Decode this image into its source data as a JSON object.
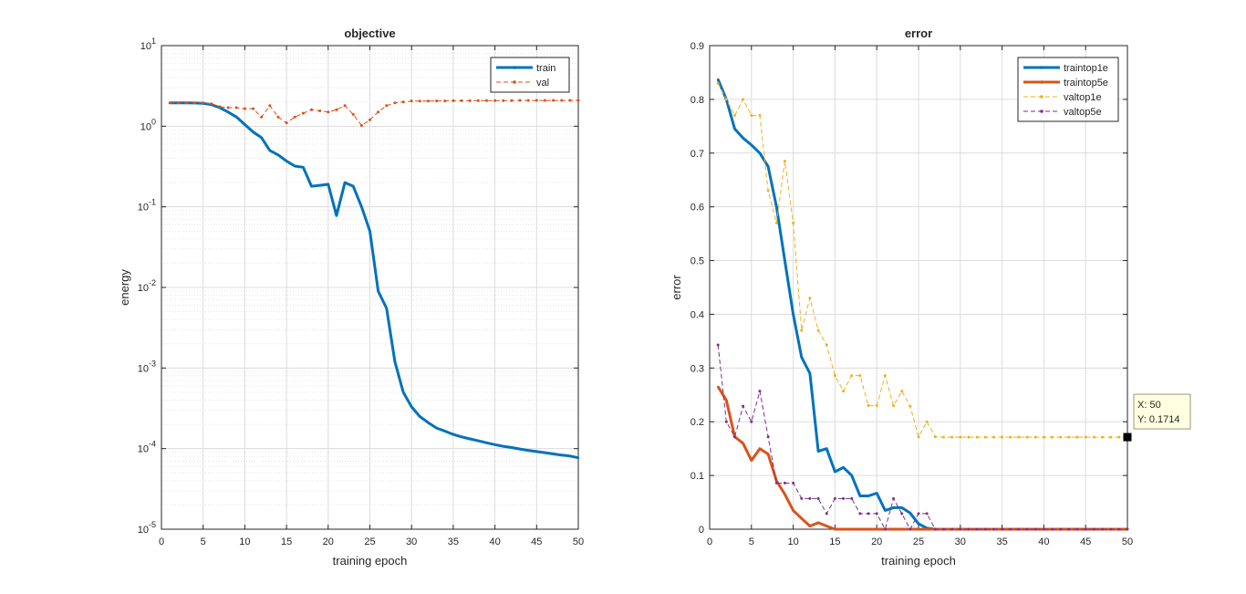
{
  "chart_data": [
    {
      "type": "line",
      "title": "objective",
      "xlabel": "training epoch",
      "ylabel": "energy",
      "xlim": [
        0,
        50
      ],
      "ylim": [
        1e-05,
        10
      ],
      "yscale": "log",
      "grid": true,
      "minor_grid": true,
      "legend_position": "top-right",
      "x_ticks": [
        "0",
        "5",
        "10",
        "15",
        "20",
        "25",
        "30",
        "35",
        "40",
        "45",
        "50"
      ],
      "y_ticks": [
        {
          "base": "10",
          "exp": "-5"
        },
        {
          "base": "10",
          "exp": "-4"
        },
        {
          "base": "10",
          "exp": "-3"
        },
        {
          "base": "10",
          "exp": "-2"
        },
        {
          "base": "10",
          "exp": "-1"
        },
        {
          "base": "10",
          "exp": "0"
        },
        {
          "base": "10",
          "exp": "1"
        }
      ],
      "x": [
        1,
        2,
        3,
        4,
        5,
        6,
        7,
        8,
        9,
        10,
        11,
        12,
        13,
        14,
        15,
        16,
        17,
        18,
        19,
        20,
        21,
        22,
        23,
        24,
        25,
        26,
        27,
        28,
        29,
        30,
        31,
        32,
        33,
        34,
        35,
        36,
        37,
        38,
        39,
        40,
        41,
        42,
        43,
        44,
        45,
        46,
        47,
        48,
        49,
        50
      ],
      "series": [
        {
          "name": "train",
          "color": "#0072BD",
          "style": "solid",
          "width": 3,
          "values": [
            1.95,
            1.95,
            1.95,
            1.94,
            1.92,
            1.85,
            1.7,
            1.5,
            1.3,
            1.05,
            0.85,
            0.72,
            0.5,
            0.44,
            0.37,
            0.32,
            0.31,
            0.18,
            0.185,
            0.19,
            0.078,
            0.2,
            0.18,
            0.1,
            0.05,
            0.009,
            0.0055,
            0.0012,
            0.0005,
            0.00033,
            0.00025,
            0.00021,
            0.00018,
            0.000165,
            0.00015,
            0.00014,
            0.000132,
            0.000125,
            0.000118,
            0.000112,
            0.000107,
            0.000103,
            9.9e-05,
            9.5e-05,
            9.2e-05,
            8.9e-05,
            8.6e-05,
            8.3e-05,
            8.1e-05,
            7.7e-05
          ]
        },
        {
          "name": "val",
          "color": "#D95319",
          "style": "dashed",
          "width": 1,
          "values": [
            1.95,
            1.95,
            1.95,
            1.95,
            1.95,
            1.9,
            1.75,
            1.7,
            1.7,
            1.65,
            1.65,
            1.3,
            1.8,
            1.3,
            1.1,
            1.3,
            1.45,
            1.6,
            1.55,
            1.5,
            1.6,
            1.8,
            1.4,
            1.02,
            1.2,
            1.5,
            1.8,
            1.95,
            2.0,
            2.05,
            2.05,
            2.05,
            2.06,
            2.06,
            2.07,
            2.07,
            2.07,
            2.08,
            2.08,
            2.08,
            2.08,
            2.08,
            2.09,
            2.09,
            2.09,
            2.09,
            2.09,
            2.09,
            2.09,
            2.09
          ]
        }
      ]
    },
    {
      "type": "line",
      "title": "error",
      "xlabel": "training epoch",
      "ylabel": "error",
      "xlim": [
        0,
        50
      ],
      "ylim": [
        0,
        0.9
      ],
      "yscale": "linear",
      "grid": true,
      "legend_position": "top-right",
      "x_ticks": [
        "0",
        "5",
        "10",
        "15",
        "20",
        "25",
        "30",
        "35",
        "40",
        "45",
        "50"
      ],
      "y_ticks": [
        "0",
        "0.1",
        "0.2",
        "0.3",
        "0.4",
        "0.5",
        "0.6",
        "0.7",
        "0.8",
        "0.9"
      ],
      "x": [
        1,
        2,
        3,
        4,
        5,
        6,
        7,
        8,
        9,
        10,
        11,
        12,
        13,
        14,
        15,
        16,
        17,
        18,
        19,
        20,
        21,
        22,
        23,
        24,
        25,
        26,
        27,
        28,
        29,
        30,
        31,
        32,
        33,
        34,
        35,
        36,
        37,
        38,
        39,
        40,
        41,
        42,
        43,
        44,
        45,
        46,
        47,
        48,
        49,
        50
      ],
      "series": [
        {
          "name": "traintop1e",
          "color": "#0072BD",
          "style": "solid",
          "width": 3,
          "values": [
            0.837,
            0.8,
            0.745,
            0.728,
            0.715,
            0.7,
            0.675,
            0.6,
            0.5,
            0.4,
            0.32,
            0.29,
            0.145,
            0.15,
            0.107,
            0.115,
            0.1,
            0.062,
            0.062,
            0.067,
            0.035,
            0.04,
            0.04,
            0.03,
            0.01,
            0.002,
            0,
            0,
            0,
            0,
            0,
            0,
            0,
            0,
            0,
            0,
            0,
            0,
            0,
            0,
            0,
            0,
            0,
            0,
            0,
            0,
            0,
            0,
            0,
            0
          ]
        },
        {
          "name": "traintop5e",
          "color": "#D95319",
          "style": "solid",
          "width": 3,
          "values": [
            0.265,
            0.24,
            0.172,
            0.16,
            0.128,
            0.15,
            0.14,
            0.09,
            0.065,
            0.035,
            0.02,
            0.006,
            0.012,
            0.006,
            0,
            0,
            0,
            0,
            0,
            0,
            0,
            0,
            0,
            0,
            0,
            0,
            0,
            0,
            0,
            0,
            0,
            0,
            0,
            0,
            0,
            0,
            0,
            0,
            0,
            0,
            0,
            0,
            0,
            0,
            0,
            0,
            0,
            0,
            0,
            0
          ]
        },
        {
          "name": "valtop1e",
          "color": "#EDB120",
          "style": "dashed",
          "width": 1,
          "values": [
            0.83,
            0.8,
            0.77,
            0.8,
            0.77,
            0.77,
            0.63,
            0.57,
            0.685,
            0.57,
            0.37,
            0.43,
            0.37,
            0.343,
            0.286,
            0.257,
            0.286,
            0.286,
            0.23,
            0.23,
            0.286,
            0.23,
            0.257,
            0.229,
            0.172,
            0.2,
            0.172,
            0.1714,
            0.1714,
            0.1714,
            0.1714,
            0.1714,
            0.1714,
            0.1714,
            0.1714,
            0.1714,
            0.1714,
            0.1714,
            0.1714,
            0.1714,
            0.1714,
            0.1714,
            0.1714,
            0.1714,
            0.1714,
            0.1714,
            0.1714,
            0.1714,
            0.1714,
            0.1714
          ]
        },
        {
          "name": "valtop5e",
          "color": "#7E2F8E",
          "style": "dashed",
          "width": 1,
          "values": [
            0.343,
            0.2,
            0.172,
            0.229,
            0.2,
            0.257,
            0.172,
            0.086,
            0.086,
            0.086,
            0.057,
            0.057,
            0.057,
            0.029,
            0.057,
            0.057,
            0.057,
            0.029,
            0.029,
            0.029,
            0,
            0.057,
            0.029,
            0,
            0.029,
            0.029,
            0,
            0,
            0,
            0,
            0,
            0,
            0,
            0,
            0,
            0,
            0,
            0,
            0,
            0,
            0,
            0,
            0,
            0,
            0,
            0,
            0,
            0,
            0,
            0
          ]
        }
      ],
      "datatip": {
        "x_text": "X: 50",
        "y_text": "Y: 0.1714",
        "x": 50,
        "y": 0.1714
      }
    }
  ]
}
